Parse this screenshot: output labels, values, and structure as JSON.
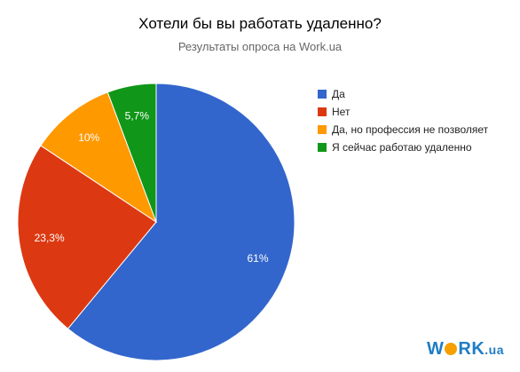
{
  "chart_data": {
    "type": "pie",
    "title": "Хотели бы вы работать удаленно?",
    "subtitle": "Результаты опроса на Work.ua",
    "slices": [
      {
        "label": "Да",
        "value": 61,
        "display": "61%",
        "color": "#3366cc"
      },
      {
        "label": "Нет",
        "value": 23.3,
        "display": "23,3%",
        "color": "#dc3912"
      },
      {
        "label": "Да, но профессия не позволяет",
        "value": 10,
        "display": "10%",
        "color": "#ff9900"
      },
      {
        "label": "Я сейчас работаю удаленно",
        "value": 5.7,
        "display": "5,7%",
        "color": "#109618"
      }
    ],
    "legend_placement": "right"
  },
  "logo": {
    "text": "WORK.ua",
    "main_before": "W",
    "main_after": "RK",
    "suffix": ".ua"
  }
}
